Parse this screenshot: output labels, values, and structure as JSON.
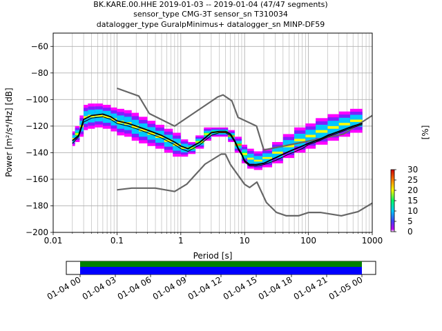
{
  "title": {
    "line1": "BK.KARE.00.HHE   2019-01-03 -- 2019-01-04  (47/47 segments)",
    "line2": "sensor_type CMG-3T sensor_sn T310034",
    "line3": "datalogger_type GuralpMinimus+ datalogger_sn MINP-DF59"
  },
  "colorbar": {
    "label": "[%]",
    "ticks": [
      "0",
      "5",
      "10",
      "15",
      "20",
      "25",
      "30"
    ],
    "range": [
      0,
      30
    ]
  },
  "timeline": {
    "ticks": [
      "01-04 00",
      "01-04 03",
      "01-04 06",
      "01-04 09",
      "01-04 12",
      "01-04 15",
      "01-04 18",
      "01-04 21",
      "01-05 00"
    ],
    "colors": {
      "coverage": "#0000ff",
      "gaps_top": "#008000"
    }
  },
  "chart_data": {
    "type": "heatmap",
    "title": "BK.KARE.00.HHE   2019-01-03 -- 2019-01-04  (47/47 segments)",
    "xlabel": "Period [s]",
    "ylabel": "Power [m²/s⁴/Hz] [dB]",
    "xscale": "log",
    "xlim": [
      0.01,
      1000
    ],
    "ylim": [
      -200,
      -50
    ],
    "xticks": [
      0.01,
      0.1,
      1,
      10,
      100,
      1000
    ],
    "xtick_labels": [
      "0.01",
      "0.1",
      "1",
      "10",
      "100",
      "1000"
    ],
    "yticks": [
      -200,
      -180,
      -160,
      -140,
      -120,
      -100,
      -80,
      -60
    ],
    "ytick_labels": [
      "−200",
      "−180",
      "−160",
      "−140",
      "−120",
      "−100",
      "−80",
      "−60"
    ],
    "grid": true,
    "series": [
      {
        "name": "NHNM",
        "color": "#666666",
        "x": [
          0.1,
          0.22,
          0.32,
          0.8,
          3.8,
          4.6,
          6.3,
          7.9,
          15.4,
          20,
          354.8,
          1000
        ],
        "y": [
          -91.5,
          -97.4,
          -110.5,
          -120.0,
          -98.0,
          -96.5,
          -101.0,
          -113.5,
          -120.0,
          -138.0,
          -126.0,
          -112.0
        ]
      },
      {
        "name": "NLNM",
        "color": "#666666",
        "x": [
          0.1,
          0.17,
          0.4,
          0.8,
          1.24,
          2.4,
          4.3,
          5.0,
          6.0,
          10.0,
          12.0,
          15.6,
          21.9,
          31.6,
          45.0,
          70.0,
          101.0,
          154.0,
          328.0,
          600.0,
          1000.0
        ],
        "y": [
          -168.0,
          -166.7,
          -166.7,
          -169.2,
          -163.7,
          -148.6,
          -141.1,
          -141.1,
          -149.0,
          -163.8,
          -166.2,
          -162.1,
          -177.5,
          -185.0,
          -187.5,
          -187.5,
          -185.0,
          -185.0,
          -187.5,
          -184.4,
          -178.0
        ]
      },
      {
        "name": "mode",
        "color": "#000000",
        "x": [
          0.02,
          0.025,
          0.03,
          0.04,
          0.06,
          0.08,
          0.1,
          0.15,
          0.2,
          0.3,
          0.5,
          0.8,
          1.0,
          1.3,
          2.0,
          3.0,
          4.0,
          5.0,
          6.0,
          7.0,
          8.0,
          9.0,
          10.0,
          12.0,
          15.0,
          20.0,
          30.0,
          50.0,
          80.0,
          100.0,
          150.0,
          200.0,
          300.0,
          500.0,
          700.0
        ],
        "y": [
          -131,
          -127,
          -115,
          -112,
          -111,
          -113,
          -116,
          -118,
          -120,
          -123,
          -127,
          -132,
          -135,
          -137,
          -132,
          -125,
          -124,
          -124,
          -126,
          -131,
          -137,
          -141,
          -146,
          -149,
          -149,
          -148,
          -144,
          -139,
          -135,
          -133,
          -130,
          -127,
          -124,
          -120,
          -118
        ]
      },
      {
        "name": "mean",
        "color": "#000000",
        "x": [
          0.02,
          0.025,
          0.03,
          0.04,
          0.06,
          0.08,
          0.1,
          0.15,
          0.2,
          0.3,
          0.5,
          0.8,
          1.0,
          1.3,
          2.0,
          3.0,
          4.0,
          5.0,
          6.0,
          7.0,
          8.0,
          9.0,
          10.0,
          12.0,
          15.0,
          20.0,
          30.0,
          50.0,
          80.0,
          100.0,
          150.0,
          200.0,
          300.0,
          500.0,
          700.0
        ],
        "y": [
          -133,
          -128,
          -117,
          -114,
          -113,
          -115,
          -118,
          -120,
          -122,
          -125,
          -129,
          -134,
          -137,
          -139,
          -134,
          -127,
          -125,
          -125,
          -127,
          -132,
          -138,
          -142,
          -147,
          -150,
          -150,
          -149,
          -146,
          -141,
          -137,
          -134,
          -131,
          -128,
          -125,
          -121,
          -119
        ]
      }
    ],
    "density": [
      {
        "x": [
          0.02,
          0.022
        ],
        "y": [
          -135,
          -124
        ],
        "percent": 6
      },
      {
        "x": [
          0.022,
          0.026
        ],
        "y": [
          -132,
          -120
        ],
        "percent": 9
      },
      {
        "x": [
          0.026,
          0.03
        ],
        "y": [
          -128,
          -112
        ],
        "percent": 8
      },
      {
        "x": [
          0.03,
          0.035
        ],
        "y": [
          -123,
          -104
        ],
        "percent": 7
      },
      {
        "x": [
          0.035,
          0.045
        ],
        "y": [
          -122,
          -103
        ],
        "percent": 7
      },
      {
        "x": [
          0.045,
          0.06
        ],
        "y": [
          -121,
          -103
        ],
        "percent": 7
      },
      {
        "x": [
          0.06,
          0.08
        ],
        "y": [
          -122,
          -104
        ],
        "percent": 7
      },
      {
        "x": [
          0.08,
          0.1
        ],
        "y": [
          -124,
          -106
        ],
        "percent": 7
      },
      {
        "x": [
          0.1,
          0.13
        ],
        "y": [
          -127,
          -107
        ],
        "percent": 7
      },
      {
        "x": [
          0.13,
          0.17
        ],
        "y": [
          -128,
          -108
        ],
        "percent": 8
      },
      {
        "x": [
          0.17,
          0.22
        ],
        "y": [
          -131,
          -110
        ],
        "percent": 7
      },
      {
        "x": [
          0.22,
          0.3
        ],
        "y": [
          -133,
          -113
        ],
        "percent": 7
      },
      {
        "x": [
          0.3,
          0.4
        ],
        "y": [
          -135,
          -116
        ],
        "percent": 7
      },
      {
        "x": [
          0.4,
          0.55
        ],
        "y": [
          -137,
          -119
        ],
        "percent": 7
      },
      {
        "x": [
          0.55,
          0.75
        ],
        "y": [
          -140,
          -122
        ],
        "percent": 7
      },
      {
        "x": [
          0.75,
          1.0
        ],
        "y": [
          -143,
          -125
        ],
        "percent": 7
      },
      {
        "x": [
          1.0,
          1.3
        ],
        "y": [
          -143,
          -130
        ],
        "percent": 8
      },
      {
        "x": [
          1.3,
          1.7
        ],
        "y": [
          -141,
          -132
        ],
        "percent": 9
      },
      {
        "x": [
          1.7,
          2.3
        ],
        "y": [
          -137,
          -127
        ],
        "percent": 9
      },
      {
        "x": [
          2.3,
          3.0
        ],
        "y": [
          -131,
          -121
        ],
        "percent": 10
      },
      {
        "x": [
          3.0,
          4.0
        ],
        "y": [
          -128,
          -121
        ],
        "percent": 12
      },
      {
        "x": [
          4.0,
          5.5
        ],
        "y": [
          -128,
          -121
        ],
        "percent": 12
      },
      {
        "x": [
          5.5,
          7.0
        ],
        "y": [
          -132,
          -123
        ],
        "percent": 11
      },
      {
        "x": [
          7.0,
          9.0
        ],
        "y": [
          -140,
          -128
        ],
        "percent": 11
      },
      {
        "x": [
          9.0,
          11.0
        ],
        "y": [
          -148,
          -134
        ],
        "percent": 10
      },
      {
        "x": [
          11.0,
          14.0
        ],
        "y": [
          -152,
          -137
        ],
        "percent": 8
      },
      {
        "x": [
          14.0,
          19.0
        ],
        "y": [
          -153,
          -139
        ],
        "percent": 8
      },
      {
        "x": [
          19.0,
          27.0
        ],
        "y": [
          -151,
          -137
        ],
        "percent": 8
      },
      {
        "x": [
          27.0,
          40.0
        ],
        "y": [
          -148,
          -132
        ],
        "percent": 8
      },
      {
        "x": [
          40.0,
          60.0
        ],
        "y": [
          -144,
          -126
        ],
        "percent": 8
      },
      {
        "x": [
          60.0,
          90.0
        ],
        "y": [
          -140,
          -121
        ],
        "percent": 8
      },
      {
        "x": [
          90.0,
          130.0
        ],
        "y": [
          -137,
          -118
        ],
        "percent": 8
      },
      {
        "x": [
          130.0,
          200.0
        ],
        "y": [
          -134,
          -114
        ],
        "percent": 8
      },
      {
        "x": [
          200.0,
          300.0
        ],
        "y": [
          -131,
          -111
        ],
        "percent": 8
      },
      {
        "x": [
          300.0,
          450.0
        ],
        "y": [
          -128,
          -109
        ],
        "percent": 8
      },
      {
        "x": [
          450.0,
          700.0
        ],
        "y": [
          -125,
          -107
        ],
        "percent": 8
      }
    ]
  }
}
